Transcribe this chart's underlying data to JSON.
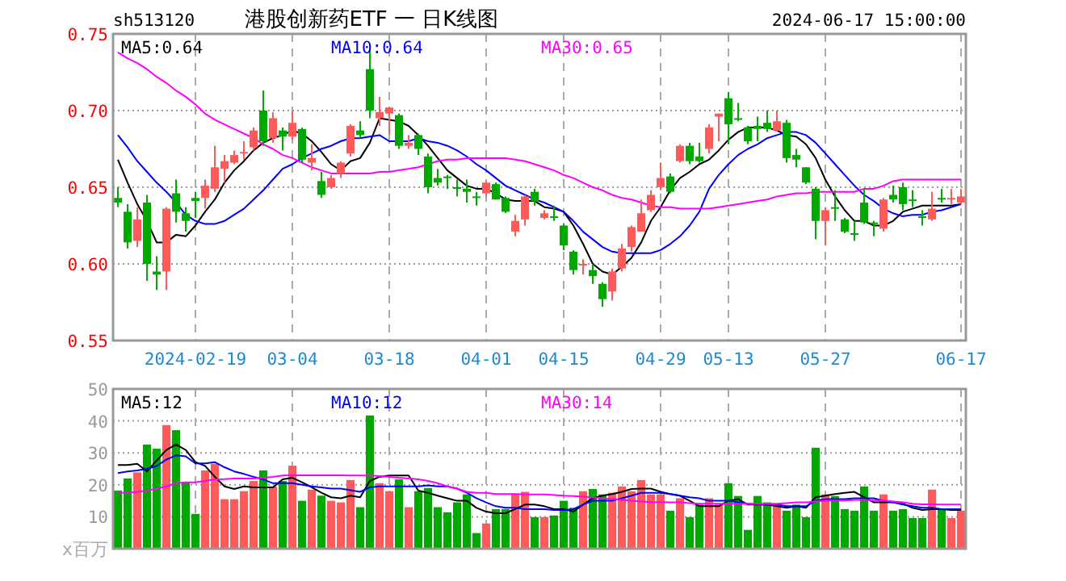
{
  "chart_data": [
    {
      "type": "candlestick",
      "title": "港股创新药ETF 一 日K线图",
      "annotations": [
        "sh513120",
        "2024-06-17 15:00:00"
      ],
      "categories": [
        null,
        null,
        null,
        null,
        null,
        null,
        null,
        null,
        "2024-02-19",
        null,
        null,
        null,
        null,
        null,
        null,
        null,
        null,
        null,
        "03-04",
        null,
        null,
        null,
        null,
        null,
        null,
        null,
        null,
        null,
        "03-18",
        null,
        null,
        null,
        null,
        null,
        null,
        null,
        null,
        null,
        "04-01",
        null,
        null,
        null,
        null,
        null,
        null,
        null,
        "04-15",
        null,
        null,
        null,
        null,
        null,
        null,
        null,
        null,
        null,
        "04-29",
        null,
        null,
        null,
        null,
        null,
        null,
        "05-13",
        null,
        null,
        null,
        null,
        null,
        null,
        null,
        null,
        null,
        "05-27",
        null,
        null,
        null,
        null,
        null,
        null,
        null,
        null,
        null,
        null,
        null,
        null,
        null,
        "06-17"
      ],
      "ohlc": [
        [
          0.643,
          0.65,
          0.637,
          0.64
        ],
        [
          0.634,
          0.639,
          0.61,
          0.614
        ],
        [
          0.615,
          0.637,
          0.611,
          0.629
        ],
        [
          0.64,
          0.645,
          0.589,
          0.6
        ],
        [
          0.595,
          0.605,
          0.583,
          0.593
        ],
        [
          0.595,
          0.637,
          0.583,
          0.636
        ],
        [
          0.646,
          0.655,
          0.627,
          0.634
        ],
        [
          0.633,
          0.637,
          0.621,
          0.628
        ],
        [
          0.643,
          0.647,
          0.63,
          0.641
        ],
        [
          0.643,
          0.655,
          0.636,
          0.651
        ],
        [
          0.649,
          0.677,
          0.647,
          0.663
        ],
        [
          0.662,
          0.671,
          0.653,
          0.667
        ],
        [
          0.666,
          0.674,
          0.665,
          0.671
        ],
        [
          0.672,
          0.68,
          0.668,
          0.673
        ],
        [
          0.676,
          0.689,
          0.674,
          0.687
        ],
        [
          0.7,
          0.713,
          0.677,
          0.68
        ],
        [
          0.682,
          0.699,
          0.679,
          0.695
        ],
        [
          0.687,
          0.689,
          0.674,
          0.683
        ],
        [
          0.683,
          0.7,
          0.681,
          0.692
        ],
        [
          0.688,
          0.689,
          0.666,
          0.668
        ],
        [
          0.666,
          0.678,
          0.661,
          0.669
        ],
        [
          0.654,
          0.66,
          0.643,
          0.645
        ],
        [
          0.65,
          0.658,
          0.649,
          0.656
        ],
        [
          0.659,
          0.667,
          0.656,
          0.666
        ],
        [
          0.672,
          0.691,
          0.67,
          0.69
        ],
        [
          0.687,
          0.693,
          0.682,
          0.684
        ],
        [
          0.727,
          0.741,
          0.695,
          0.7
        ],
        [
          0.695,
          0.709,
          0.69,
          0.699
        ],
        [
          0.698,
          0.702,
          0.684,
          0.702
        ],
        [
          0.697,
          0.698,
          0.675,
          0.677
        ],
        [
          0.677,
          0.684,
          0.675,
          0.679
        ],
        [
          0.684,
          0.685,
          0.671,
          0.675
        ],
        [
          0.67,
          0.672,
          0.646,
          0.65
        ],
        [
          0.656,
          0.662,
          0.651,
          0.653
        ],
        [
          0.657,
          0.658,
          0.649,
          0.656
        ],
        [
          0.65,
          0.655,
          0.644,
          0.649
        ],
        [
          0.649,
          0.655,
          0.64,
          0.647
        ],
        [
          0.644,
          0.647,
          0.638,
          0.643
        ],
        [
          0.646,
          0.654,
          0.644,
          0.653
        ],
        [
          0.652,
          0.653,
          0.642,
          0.642
        ],
        [
          0.643,
          0.644,
          0.633,
          0.634
        ],
        [
          0.621,
          0.632,
          0.618,
          0.628
        ],
        [
          0.629,
          0.645,
          0.625,
          0.644
        ],
        [
          0.647,
          0.649,
          0.638,
          0.641
        ],
        [
          0.63,
          0.635,
          0.629,
          0.633
        ],
        [
          0.631,
          0.638,
          0.628,
          0.63
        ],
        [
          0.625,
          0.626,
          0.609,
          0.612
        ],
        [
          0.608,
          0.609,
          0.593,
          0.596
        ],
        [
          0.599,
          0.603,
          0.593,
          0.6
        ],
        [
          0.596,
          0.6,
          0.587,
          0.592
        ],
        [
          0.587,
          0.588,
          0.572,
          0.577
        ],
        [
          0.582,
          0.597,
          0.576,
          0.595
        ],
        [
          0.597,
          0.613,
          0.595,
          0.61
        ],
        [
          0.611,
          0.625,
          0.608,
          0.624
        ],
        [
          0.621,
          0.642,
          0.621,
          0.633
        ],
        [
          0.635,
          0.648,
          0.634,
          0.645
        ],
        [
          0.65,
          0.666,
          0.648,
          0.656
        ],
        [
          0.657,
          0.659,
          0.646,
          0.647
        ],
        [
          0.667,
          0.678,
          0.666,
          0.677
        ],
        [
          0.677,
          0.679,
          0.665,
          0.667
        ],
        [
          0.67,
          0.679,
          0.666,
          0.667
        ],
        [
          0.675,
          0.691,
          0.672,
          0.689
        ],
        [
          0.696,
          0.698,
          0.68,
          0.698
        ],
        [
          0.708,
          0.712,
          0.678,
          0.691
        ],
        [
          0.695,
          0.705,
          0.693,
          0.694
        ],
        [
          0.689,
          0.69,
          0.678,
          0.68
        ],
        [
          0.69,
          0.696,
          0.68,
          0.688
        ],
        [
          0.692,
          0.7,
          0.686,
          0.688
        ],
        [
          0.687,
          0.7,
          0.686,
          0.693
        ],
        [
          0.692,
          0.694,
          0.666,
          0.669
        ],
        [
          0.671,
          0.675,
          0.663,
          0.668
        ],
        [
          0.663,
          0.663,
          0.652,
          0.653
        ],
        [
          0.649,
          0.65,
          0.616,
          0.628
        ],
        [
          0.628,
          0.637,
          0.612,
          0.635
        ],
        [
          0.637,
          0.648,
          0.628,
          0.636
        ],
        [
          0.629,
          0.63,
          0.62,
          0.621
        ],
        [
          0.62,
          0.628,
          0.615,
          0.619
        ],
        [
          0.64,
          0.649,
          0.626,
          0.627
        ],
        [
          0.627,
          0.628,
          0.618,
          0.626
        ],
        [
          0.623,
          0.643,
          0.621,
          0.642
        ],
        [
          0.645,
          0.651,
          0.64,
          0.642
        ],
        [
          0.65,
          0.653,
          0.635,
          0.639
        ],
        [
          0.642,
          0.648,
          0.637,
          0.641
        ],
        [
          0.631,
          0.635,
          0.625,
          0.63
        ],
        [
          0.629,
          0.647,
          0.628,
          0.636
        ],
        [
          0.643,
          0.649,
          0.64,
          0.642
        ],
        [
          0.642,
          0.649,
          0.639,
          0.643
        ],
        [
          0.64,
          0.649,
          0.639,
          0.644
        ]
      ],
      "colors": [
        "#00a800",
        "#00a800",
        "#ff5a5a",
        "#00a800",
        "#00a800",
        "#ff5a5a",
        "#00a800",
        "#00a800",
        "#00a800",
        "#ff5a5a",
        "#ff5a5a",
        "#ff5a5a",
        "#ff5a5a",
        "#ff5a5a",
        "#ff5a5a",
        "#00a800",
        "#ff5a5a",
        "#00a800",
        "#ff5a5a",
        "#00a800",
        "#ff5a5a",
        "#00a800",
        "#ff5a5a",
        "#ff5a5a",
        "#ff5a5a",
        "#00a800",
        "#00a800",
        "#ff5a5a",
        "#ff5a5a",
        "#00a800",
        "#ff5a5a",
        "#00a800",
        "#00a800",
        "#00a800",
        "#00a800",
        "#00a800",
        "#00a800",
        "#00a800",
        "#ff5a5a",
        "#00a800",
        "#00a800",
        "#ff5a5a",
        "#ff5a5a",
        "#00a800",
        "#ff5a5a",
        "#00a800",
        "#00a800",
        "#00a800",
        "#ff5a5a",
        "#00a800",
        "#00a800",
        "#ff5a5a",
        "#ff5a5a",
        "#ff5a5a",
        "#ff5a5a",
        "#ff5a5a",
        "#ff5a5a",
        "#00a800",
        "#ff5a5a",
        "#00a800",
        "#00a800",
        "#ff5a5a",
        "#ff5a5a",
        "#00a800",
        "#00a800",
        "#00a800",
        "#00a800",
        "#00a800",
        "#ff5a5a",
        "#00a800",
        "#00a800",
        "#00a800",
        "#00a800",
        "#ff5a5a",
        "#00a800",
        "#00a800",
        "#00a800",
        "#00a800",
        "#00a800",
        "#ff5a5a",
        "#00a800",
        "#00a800",
        "#00a800",
        "#00a800",
        "#ff5a5a",
        "#00a800",
        "#ff5a5a",
        "#ff5a5a"
      ],
      "series": [
        {
          "type": "line",
          "name": "MA5:0.64",
          "color": "#000000",
          "values": [
            0.668,
            0.653,
            0.639,
            0.628,
            0.614,
            0.614,
            0.619,
            0.618,
            0.625,
            0.634,
            0.642,
            0.653,
            0.661,
            0.667,
            0.674,
            0.679,
            0.682,
            0.684,
            0.687,
            0.685,
            0.68,
            0.673,
            0.665,
            0.661,
            0.667,
            0.669,
            0.679,
            0.695,
            0.694,
            0.693,
            0.69,
            0.684,
            0.677,
            0.669,
            0.661,
            0.656,
            0.651,
            0.649,
            0.649,
            0.646,
            0.642,
            0.641,
            0.641,
            0.641,
            0.637,
            0.636,
            0.634,
            0.625,
            0.613,
            0.6,
            0.595,
            0.593,
            0.598,
            0.604,
            0.614,
            0.628,
            0.637,
            0.648,
            0.656,
            0.66,
            0.665,
            0.668,
            0.674,
            0.681,
            0.686,
            0.689,
            0.689,
            0.689,
            0.687,
            0.684,
            0.683,
            0.678,
            0.669,
            0.655,
            0.644,
            0.635,
            0.628,
            0.628,
            0.625,
            0.625,
            0.628,
            0.634,
            0.636,
            0.638,
            0.638,
            0.638,
            0.638,
            0.639
          ]
        },
        {
          "type": "line",
          "name": "MA10:0.64",
          "color": "#0000ff",
          "values": [
            0.684,
            0.676,
            0.667,
            0.66,
            0.653,
            0.647,
            0.64,
            0.632,
            0.628,
            0.626,
            0.626,
            0.628,
            0.632,
            0.636,
            0.642,
            0.648,
            0.655,
            0.662,
            0.665,
            0.669,
            0.672,
            0.675,
            0.677,
            0.68,
            0.682,
            0.682,
            0.683,
            0.684,
            0.68,
            0.68,
            0.68,
            0.682,
            0.68,
            0.679,
            0.677,
            0.674,
            0.67,
            0.665,
            0.661,
            0.656,
            0.651,
            0.648,
            0.645,
            0.642,
            0.64,
            0.637,
            0.634,
            0.628,
            0.621,
            0.616,
            0.611,
            0.608,
            0.607,
            0.607,
            0.607,
            0.607,
            0.609,
            0.613,
            0.618,
            0.625,
            0.634,
            0.649,
            0.658,
            0.665,
            0.671,
            0.675,
            0.678,
            0.682,
            0.684,
            0.686,
            0.686,
            0.684,
            0.679,
            0.672,
            0.665,
            0.658,
            0.651,
            0.645,
            0.641,
            0.636,
            0.633,
            0.631,
            0.632,
            0.632,
            0.634,
            0.635,
            0.637,
            0.639
          ]
        },
        {
          "type": "line",
          "name": "MA30:0.65",
          "color": "#ff00ff",
          "values": [
            0.738,
            0.734,
            0.731,
            0.727,
            0.722,
            0.718,
            0.713,
            0.709,
            0.704,
            0.698,
            0.694,
            0.691,
            0.688,
            0.685,
            0.682,
            0.678,
            0.675,
            0.671,
            0.669,
            0.666,
            0.663,
            0.661,
            0.659,
            0.659,
            0.659,
            0.659,
            0.659,
            0.66,
            0.66,
            0.661,
            0.662,
            0.663,
            0.665,
            0.667,
            0.668,
            0.668,
            0.669,
            0.669,
            0.669,
            0.669,
            0.669,
            0.668,
            0.667,
            0.665,
            0.663,
            0.661,
            0.658,
            0.656,
            0.653,
            0.65,
            0.648,
            0.645,
            0.643,
            0.642,
            0.64,
            0.638,
            0.637,
            0.637,
            0.636,
            0.636,
            0.636,
            0.636,
            0.637,
            0.638,
            0.639,
            0.64,
            0.641,
            0.642,
            0.644,
            0.645,
            0.646,
            0.646,
            0.647,
            0.647,
            0.647,
            0.647,
            0.647,
            0.649,
            0.649,
            0.651,
            0.654,
            0.655,
            0.655,
            0.655,
            0.655,
            0.655,
            0.655,
            0.655
          ]
        }
      ],
      "ylim": [
        0.55,
        0.75
      ],
      "yticks": [
        0.55,
        {
          "value": 0.6,
          "label": "0.60"
        },
        0.65,
        {
          "value": 0.7,
          "label": "0.70"
        },
        0.75
      ],
      "grid": true,
      "legend": "top left"
    },
    {
      "type": "bar",
      "ylabel": "x百万",
      "categories": [
        null,
        null,
        null,
        null,
        null,
        null,
        null,
        null,
        null,
        null,
        null,
        null,
        null,
        null,
        null,
        null,
        null,
        null,
        null,
        null,
        null,
        null,
        null,
        null,
        null,
        null,
        null,
        null,
        null,
        null,
        null,
        null,
        null,
        null,
        null,
        null,
        null,
        null,
        null,
        null,
        null,
        null,
        null,
        null,
        null,
        null,
        null,
        null,
        null,
        null,
        null,
        null,
        null,
        null,
        null,
        null,
        null,
        null,
        null,
        null,
        null,
        null,
        null,
        null,
        null,
        null,
        null,
        null,
        null,
        null,
        null,
        null,
        null,
        null,
        null,
        null,
        null,
        null,
        null,
        null,
        null,
        null,
        null,
        null,
        null,
        null,
        null,
        null
      ],
      "series": [
        {
          "type": "bar",
          "colors": [
            "#00a800",
            "#00a800",
            "#ff5a5a",
            "#00a800",
            "#00a800",
            "#ff5a5a",
            "#00a800",
            "#00a800",
            "#00a800",
            "#ff5a5a",
            "#ff5a5a",
            "#ff5a5a",
            "#ff5a5a",
            "#ff5a5a",
            "#ff5a5a",
            "#00a800",
            "#ff5a5a",
            "#00a800",
            "#ff5a5a",
            "#00a800",
            "#ff5a5a",
            "#00a800",
            "#ff5a5a",
            "#ff5a5a",
            "#ff5a5a",
            "#00a800",
            "#00a800",
            "#ff5a5a",
            "#ff5a5a",
            "#00a800",
            "#ff5a5a",
            "#00a800",
            "#00a800",
            "#00a800",
            "#00a800",
            "#00a800",
            "#00a800",
            "#00a800",
            "#ff5a5a",
            "#00a800",
            "#00a800",
            "#ff5a5a",
            "#ff5a5a",
            "#00a800",
            "#ff5a5a",
            "#00a800",
            "#00a800",
            "#00a800",
            "#ff5a5a",
            "#00a800",
            "#00a800",
            "#ff5a5a",
            "#ff5a5a",
            "#ff5a5a",
            "#ff5a5a",
            "#ff5a5a",
            "#ff5a5a",
            "#00a800",
            "#ff5a5a",
            "#00a800",
            "#00a800",
            "#ff5a5a",
            "#ff5a5a",
            "#00a800",
            "#00a800",
            "#00a800",
            "#00a800",
            "#00a800",
            "#ff5a5a",
            "#00a800",
            "#00a800",
            "#00a800",
            "#00a800",
            "#ff5a5a",
            "#00a800",
            "#00a800",
            "#00a800",
            "#00a800",
            "#00a800",
            "#ff5a5a",
            "#00a800",
            "#00a800",
            "#00a800",
            "#00a800",
            "#ff5a5a",
            "#00a800",
            "#ff5a5a",
            "#ff5a5a"
          ],
          "values": [
            18.2,
            22.0,
            23.9,
            32.6,
            31.3,
            38.7,
            37.1,
            20.8,
            10.9,
            24.5,
            26.6,
            15.5,
            15.5,
            18.0,
            21.2,
            24.5,
            19.5,
            21.2,
            26.0,
            15.0,
            18.5,
            16.6,
            15.0,
            14.5,
            21.5,
            13.0,
            41.7,
            20.5,
            18.0,
            21.7,
            13.0,
            18.0,
            19.0,
            13.0,
            11.4,
            14.5,
            17.0,
            4.9,
            7.9,
            12.4,
            12.4,
            17.3,
            17.8,
            9.9,
            9.9,
            10.4,
            15.0,
            12.8,
            18.0,
            18.7,
            17.0,
            17.5,
            19.5,
            18.0,
            21.5,
            17.0,
            17.0,
            11.9,
            15.8,
            9.9,
            13.8,
            15.8,
            13.8,
            20.5,
            16.5,
            5.9,
            16.5,
            14.5,
            13.3,
            11.9,
            13.8,
            9.9,
            31.6,
            17.0,
            16.5,
            12.4,
            11.9,
            19.5,
            11.9,
            17.0,
            11.9,
            12.4,
            9.6,
            9.6,
            18.5,
            12.4,
            9.6,
            11.9
          ]
        },
        {
          "type": "line",
          "name": "MA5:12",
          "color": "#000000",
          "values": [
            26.2,
            26.2,
            26.6,
            24.2,
            27.6,
            30.9,
            32.6,
            30.9,
            27.1,
            25.9,
            22.5,
            19.5,
            18.7,
            19.5,
            19.2,
            19.2,
            19.2,
            21.7,
            22.2,
            20.8,
            19.2,
            17.5,
            16.1,
            15.8,
            16.6,
            16.1,
            21.2,
            22.5,
            22.9,
            22.9,
            22.9,
            18.2,
            17.5,
            16.6,
            15.8,
            15.0,
            15.0,
            12.8,
            11.6,
            11.1,
            11.1,
            12.4,
            13.8,
            13.8,
            13.3,
            12.4,
            12.4,
            11.6,
            13.8,
            15.8,
            16.6,
            17.1,
            17.8,
            18.7,
            18.8,
            18.8,
            17.8,
            17.1,
            16.6,
            15.0,
            13.3,
            13.3,
            13.3,
            15.0,
            15.5,
            13.8,
            13.8,
            13.8,
            13.3,
            12.8,
            13.3,
            12.8,
            16.1,
            16.6,
            17.1,
            17.5,
            17.8,
            16.1,
            14.5,
            14.5,
            14.5,
            14.1,
            12.8,
            12.1,
            12.4,
            12.4,
            12.1,
            12.1
          ]
        },
        {
          "type": "line",
          "name": "MA10:12",
          "color": "#0000ff",
          "values": [
            23.7,
            24.2,
            24.5,
            25.0,
            25.9,
            27.9,
            29.2,
            28.9,
            26.7,
            26.7,
            27.1,
            25.5,
            24.2,
            23.4,
            22.5,
            21.7,
            20.5,
            20.5,
            20.5,
            20.0,
            19.5,
            19.2,
            18.8,
            18.8,
            18.3,
            17.8,
            19.2,
            19.5,
            19.5,
            19.5,
            19.5,
            19.5,
            19.8,
            19.5,
            19.5,
            18.8,
            17.5,
            15.8,
            14.5,
            13.3,
            12.8,
            12.8,
            12.4,
            12.4,
            12.4,
            12.1,
            12.1,
            12.4,
            13.8,
            15.0,
            15.0,
            15.0,
            15.8,
            16.6,
            17.5,
            17.5,
            17.5,
            17.1,
            16.6,
            16.1,
            15.8,
            15.0,
            15.0,
            15.0,
            14.5,
            14.1,
            13.8,
            13.8,
            13.8,
            13.3,
            13.3,
            13.3,
            15.0,
            15.5,
            15.5,
            15.5,
            15.8,
            15.8,
            15.8,
            15.0,
            14.5,
            13.8,
            13.3,
            12.8,
            12.8,
            12.4,
            12.4,
            12.4
          ]
        },
        {
          "type": "line",
          "name": "MA30:14",
          "color": "#ff00ff",
          "values": [
            17.5,
            17.5,
            17.8,
            18.2,
            18.8,
            19.5,
            20.5,
            20.8,
            20.8,
            21.2,
            21.7,
            21.8,
            22.0,
            22.0,
            22.0,
            22.2,
            22.5,
            22.9,
            23.0,
            23.0,
            23.0,
            23.0,
            23.0,
            23.0,
            22.9,
            22.9,
            22.9,
            22.7,
            22.5,
            22.2,
            22.0,
            21.7,
            21.2,
            20.5,
            19.5,
            18.8,
            17.8,
            17.5,
            17.5,
            17.1,
            17.1,
            17.1,
            17.0,
            17.0,
            17.0,
            16.8,
            16.6,
            16.5,
            16.3,
            16.1,
            15.8,
            15.5,
            15.3,
            15.0,
            14.8,
            14.6,
            14.6,
            14.5,
            14.5,
            14.3,
            14.1,
            14.1,
            14.1,
            14.1,
            14.1,
            14.1,
            14.1,
            14.1,
            14.1,
            14.3,
            14.5,
            14.5,
            14.8,
            15.0,
            15.1,
            15.1,
            15.3,
            15.3,
            15.1,
            15.1,
            14.8,
            14.5,
            14.1,
            13.9,
            13.9,
            13.8,
            13.8,
            13.8
          ]
        }
      ],
      "ylim": [
        0,
        50
      ],
      "yticks": [
        {
          "value": 0,
          "label": null
        },
        10,
        20,
        30,
        40,
        50
      ],
      "grid": true,
      "legend": "top left",
      "tick_labels": "y"
    }
  ]
}
